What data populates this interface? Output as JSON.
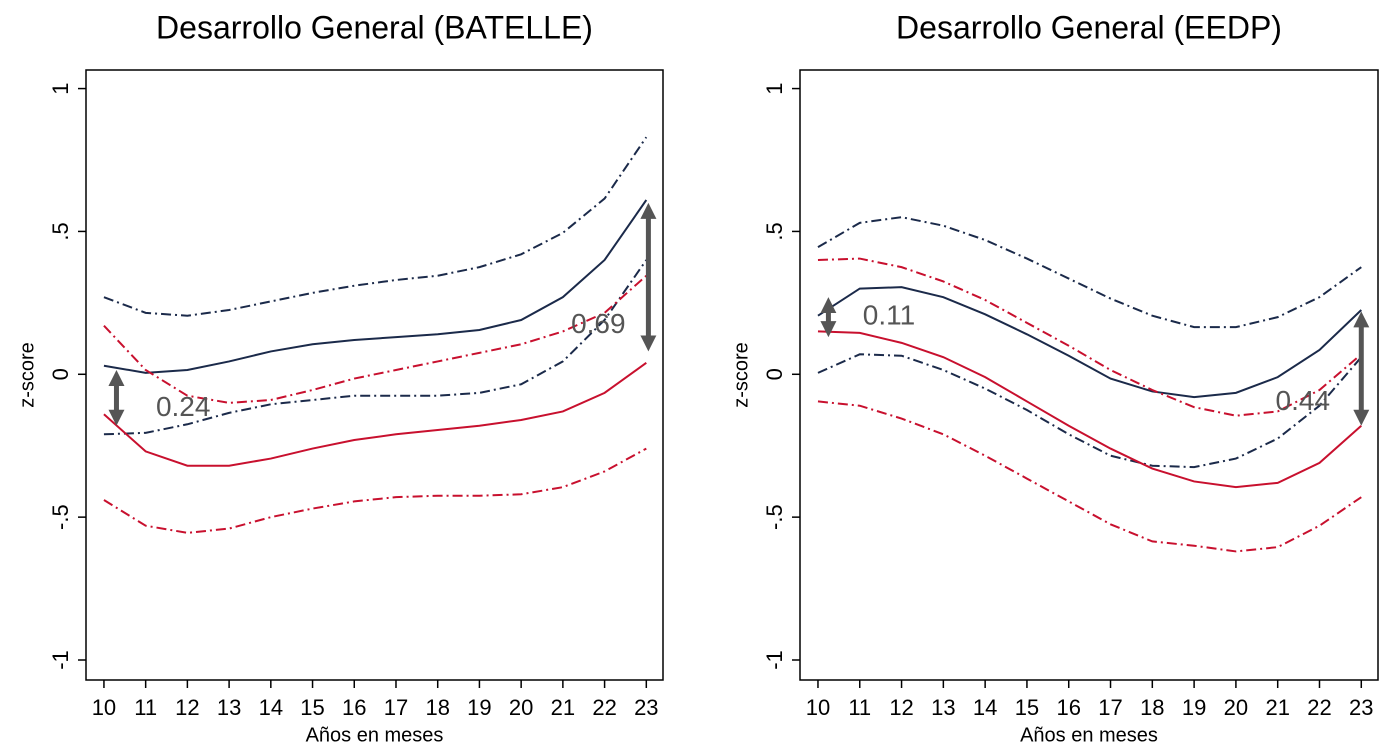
{
  "chart_data": [
    {
      "type": "line",
      "title": "Desarrollo General (BATELLE)",
      "xlabel": "Años en meses",
      "ylabel": "z-score",
      "x": [
        10,
        11,
        12,
        13,
        14,
        15,
        16,
        17,
        18,
        19,
        20,
        21,
        22,
        23
      ],
      "xlim": [
        9.57,
        23.4
      ],
      "xticks": [
        10,
        11,
        12,
        13,
        14,
        15,
        16,
        17,
        18,
        19,
        20,
        21,
        22,
        23
      ],
      "ylim": [
        -1.07,
        1.065
      ],
      "yticks": [
        {
          "value": -1,
          "label": "-1"
        },
        {
          "value": -0.5,
          "label": "-.5"
        },
        0,
        {
          "value": 0.5,
          "label": ".5"
        },
        1
      ],
      "series": [
        {
          "color": "#1b2a4a",
          "style": "solid",
          "values": [
            0.03,
            0.005,
            0.015,
            0.045,
            0.08,
            0.105,
            0.12,
            0.13,
            0.14,
            0.155,
            0.19,
            0.27,
            0.4,
            0.61
          ]
        },
        {
          "color": "#1b2a4a",
          "style": "dashdot",
          "values": [
            0.27,
            0.215,
            0.205,
            0.225,
            0.255,
            0.285,
            0.31,
            0.33,
            0.345,
            0.375,
            0.42,
            0.495,
            0.615,
            0.83
          ]
        },
        {
          "color": "#1b2a4a",
          "style": "dashdot",
          "values": [
            -0.21,
            -0.205,
            -0.175,
            -0.135,
            -0.105,
            -0.09,
            -0.075,
            -0.075,
            -0.075,
            -0.065,
            -0.035,
            0.045,
            0.19,
            0.4
          ]
        },
        {
          "color": "#c8102e",
          "style": "solid",
          "values": [
            -0.14,
            -0.27,
            -0.32,
            -0.32,
            -0.295,
            -0.26,
            -0.23,
            -0.21,
            -0.195,
            -0.18,
            -0.16,
            -0.13,
            -0.065,
            0.04
          ]
        },
        {
          "color": "#c8102e",
          "style": "dashdot",
          "values": [
            0.17,
            0.015,
            -0.075,
            -0.1,
            -0.09,
            -0.055,
            -0.015,
            0.015,
            0.045,
            0.075,
            0.105,
            0.15,
            0.215,
            0.345
          ]
        },
        {
          "color": "#c8102e",
          "style": "dashdot",
          "values": [
            -0.44,
            -0.53,
            -0.555,
            -0.54,
            -0.5,
            -0.47,
            -0.445,
            -0.43,
            -0.425,
            -0.425,
            -0.42,
            -0.395,
            -0.34,
            -0.26
          ]
        }
      ],
      "annotations": [
        {
          "text": "0.24",
          "x": 10.3,
          "y_from": 0.015,
          "y_to": -0.18,
          "label_x": 11.9,
          "label_y": -0.12
        },
        {
          "text": "0.69",
          "x": 23.05,
          "y_from": 0.6,
          "y_to": 0.08,
          "label_x": 21.85,
          "label_y": 0.17
        }
      ]
    },
    {
      "type": "line",
      "title": "Desarrollo General (EEDP)",
      "xlabel": "Años en meses",
      "ylabel": "z-score",
      "x": [
        10,
        11,
        12,
        13,
        14,
        15,
        16,
        17,
        18,
        19,
        20,
        21,
        22,
        23
      ],
      "xlim": [
        9.57,
        23.4
      ],
      "xticks": [
        10,
        11,
        12,
        13,
        14,
        15,
        16,
        17,
        18,
        19,
        20,
        21,
        22,
        23
      ],
      "ylim": [
        -1.07,
        1.065
      ],
      "yticks": [
        {
          "value": -1,
          "label": "-1"
        },
        {
          "value": -0.5,
          "label": "-.5"
        },
        0,
        {
          "value": 0.5,
          "label": ".5"
        },
        1
      ],
      "series": [
        {
          "color": "#1b2a4a",
          "style": "solid",
          "values": [
            0.205,
            0.3,
            0.305,
            0.27,
            0.21,
            0.14,
            0.065,
            -0.015,
            -0.06,
            -0.08,
            -0.065,
            -0.01,
            0.085,
            0.225
          ]
        },
        {
          "color": "#1b2a4a",
          "style": "dashdot",
          "values": [
            0.445,
            0.53,
            0.55,
            0.52,
            0.47,
            0.405,
            0.335,
            0.265,
            0.205,
            0.165,
            0.165,
            0.2,
            0.27,
            0.375
          ]
        },
        {
          "color": "#1b2a4a",
          "style": "dashdot",
          "values": [
            0.005,
            0.07,
            0.065,
            0.015,
            -0.05,
            -0.125,
            -0.21,
            -0.285,
            -0.32,
            -0.325,
            -0.295,
            -0.225,
            -0.11,
            0.06
          ]
        },
        {
          "color": "#c8102e",
          "style": "solid",
          "values": [
            0.15,
            0.145,
            0.11,
            0.06,
            -0.01,
            -0.095,
            -0.18,
            -0.26,
            -0.33,
            -0.375,
            -0.395,
            -0.38,
            -0.31,
            -0.18
          ]
        },
        {
          "color": "#c8102e",
          "style": "dashdot",
          "values": [
            0.4,
            0.405,
            0.375,
            0.325,
            0.26,
            0.18,
            0.1,
            0.015,
            -0.055,
            -0.115,
            -0.145,
            -0.13,
            -0.055,
            0.07
          ]
        },
        {
          "color": "#c8102e",
          "style": "dashdot",
          "values": [
            -0.095,
            -0.11,
            -0.155,
            -0.21,
            -0.285,
            -0.365,
            -0.445,
            -0.525,
            -0.585,
            -0.6,
            -0.62,
            -0.605,
            -0.53,
            -0.43
          ]
        }
      ],
      "annotations": [
        {
          "text": "0.11",
          "x": 10.25,
          "y_from": 0.27,
          "y_to": 0.13,
          "label_x": 11.7,
          "label_y": 0.2
        },
        {
          "text": "0.44",
          "x": 23.0,
          "y_from": 0.22,
          "y_to": -0.18,
          "label_x": 21.6,
          "label_y": -0.1
        }
      ]
    }
  ]
}
